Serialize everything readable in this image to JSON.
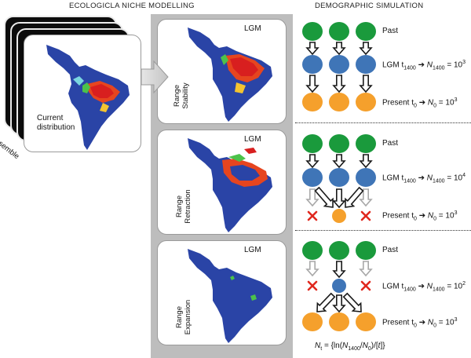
{
  "headers": {
    "eco": "ECOLOGICLA NICHE MODELLING",
    "demo": "DEMOGRAPHIC SIMULATION"
  },
  "left_panel": {
    "current_label_line1": "Current",
    "current_label_line2": "distribution",
    "ensemble_label": "ensemble"
  },
  "maps": [
    {
      "lgm": "LGM",
      "label_line1": "Range",
      "label_line2": "Stability"
    },
    {
      "lgm": "LGM",
      "label_line1": "Range",
      "label_line2": "Retraction"
    },
    {
      "lgm": "LGM",
      "label_line1": "Range",
      "label_line2": "Expansion"
    }
  ],
  "scenarios": [
    {
      "past": "Past",
      "lgm_t": "LGM t",
      "lgm_t_sub": "1400",
      "lgm_n": "N",
      "lgm_n_sub": "1400",
      "lgm_eq": " = 10",
      "lgm_exp": "3",
      "present_t": "Present t",
      "present_t_sub": "0",
      "present_n": "N",
      "present_n_sub": "0",
      "present_eq": " = 10",
      "present_exp": "3"
    },
    {
      "past": "Past",
      "lgm_t": "LGM t",
      "lgm_t_sub": "1400",
      "lgm_n": "N",
      "lgm_n_sub": "1400",
      "lgm_eq": " = 10",
      "lgm_exp": "4",
      "present_t": "Present t",
      "present_t_sub": "0",
      "present_n": "N",
      "present_n_sub": "0",
      "present_eq": " = 10",
      "present_exp": "3"
    },
    {
      "past": "Past",
      "lgm_t": "LGM t",
      "lgm_t_sub": "1400",
      "lgm_n": "N",
      "lgm_n_sub": "1400",
      "lgm_eq": " = 10",
      "lgm_exp": "2",
      "present_t": "Present t",
      "present_t_sub": "0",
      "present_n": "N",
      "present_n_sub": "0",
      "present_eq": " = 10",
      "present_exp": "3"
    }
  ],
  "formula": {
    "lhs": "N",
    "lhs_sub": "t",
    "rhs_a": " = {ln(",
    "rhs_n1": "N",
    "rhs_n1_sub": "1400",
    "rhs_slash": "/",
    "rhs_n0": "N",
    "rhs_n0_sub": "0",
    "rhs_b": ")/[",
    "rhs_t": "t",
    "rhs_c": "]}"
  },
  "colors": {
    "past": "#1a9a3c",
    "lgm": "#3f75b7",
    "present": "#f5a02c",
    "cross": "#e0281e",
    "map_blue": "#2a44a6",
    "panel_gray": "#bdbdbd"
  }
}
